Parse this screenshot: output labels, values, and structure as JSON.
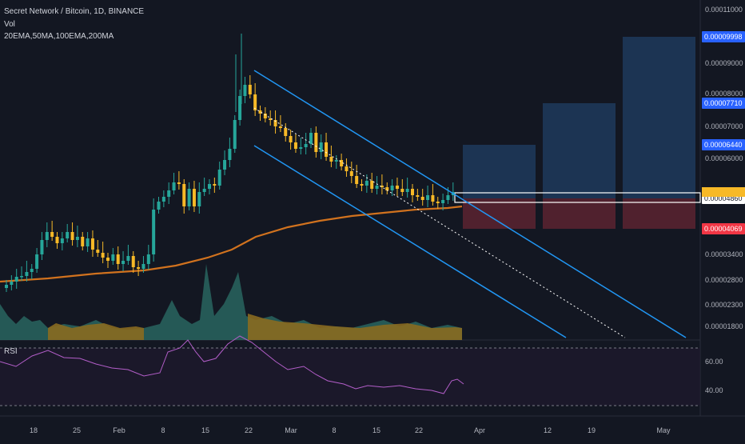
{
  "header": {
    "symbol_line": "Secret Network / Bitcoin, 1D, BINANCE",
    "volume_label": "Vol",
    "ma_label": "20EMA,50MA,100EMA,200MA"
  },
  "rsi_panel": {
    "label": "RSI",
    "ticks": [
      "60.00",
      "40.00"
    ]
  },
  "colors": {
    "background": "#131722",
    "up_candle": "#26a69a",
    "down_candle": "#f7b927",
    "channel": "#2196f3",
    "ma_line": "#d1721e",
    "rsi_line": "#b35ec9",
    "target_zone": "#1f3a5c",
    "stop_zone": "#5c2330",
    "red_label": "#f23645",
    "blue_label": "#2962ff"
  },
  "chart_data": {
    "type": "candlestick",
    "price_axis": {
      "scale": "log",
      "ticks": [
        "0.00011000",
        "0.00009000",
        "0.00008000",
        "0.00007000",
        "0.00006000",
        "0.00003400",
        "0.00002800",
        "0.00002300",
        "0.00001800"
      ],
      "labels": [
        {
          "text": "0.00009998",
          "value": 9.998e-05,
          "style": "blue"
        },
        {
          "text": "0.00007710",
          "value": 7.71e-05,
          "style": "blue"
        },
        {
          "text": "0.00006440",
          "value": 6.44e-05,
          "style": "blue"
        },
        {
          "text": "0.00004860",
          "value": 4.86e-05,
          "style": "white"
        },
        {
          "text": "0.00004069",
          "value": 4.069e-05,
          "style": "red"
        }
      ]
    },
    "time_axis": [
      "18",
      "25",
      "Feb",
      "8",
      "15",
      "22",
      "Mar",
      "8",
      "15",
      "22",
      "Apr",
      "12",
      "19",
      "May"
    ],
    "channel": {
      "upper": "from Feb 22 high, sloping down",
      "lower": "parallel, below",
      "midline": "dotted"
    },
    "targets": [
      6.44e-05,
      7.71e-05,
      9.998e-05
    ],
    "stop": 4.069e-05,
    "entry": 4.86e-05,
    "indicators": [
      "20EMA",
      "50MA",
      "100EMA",
      "200MA",
      "Vol",
      "RSI"
    ]
  }
}
